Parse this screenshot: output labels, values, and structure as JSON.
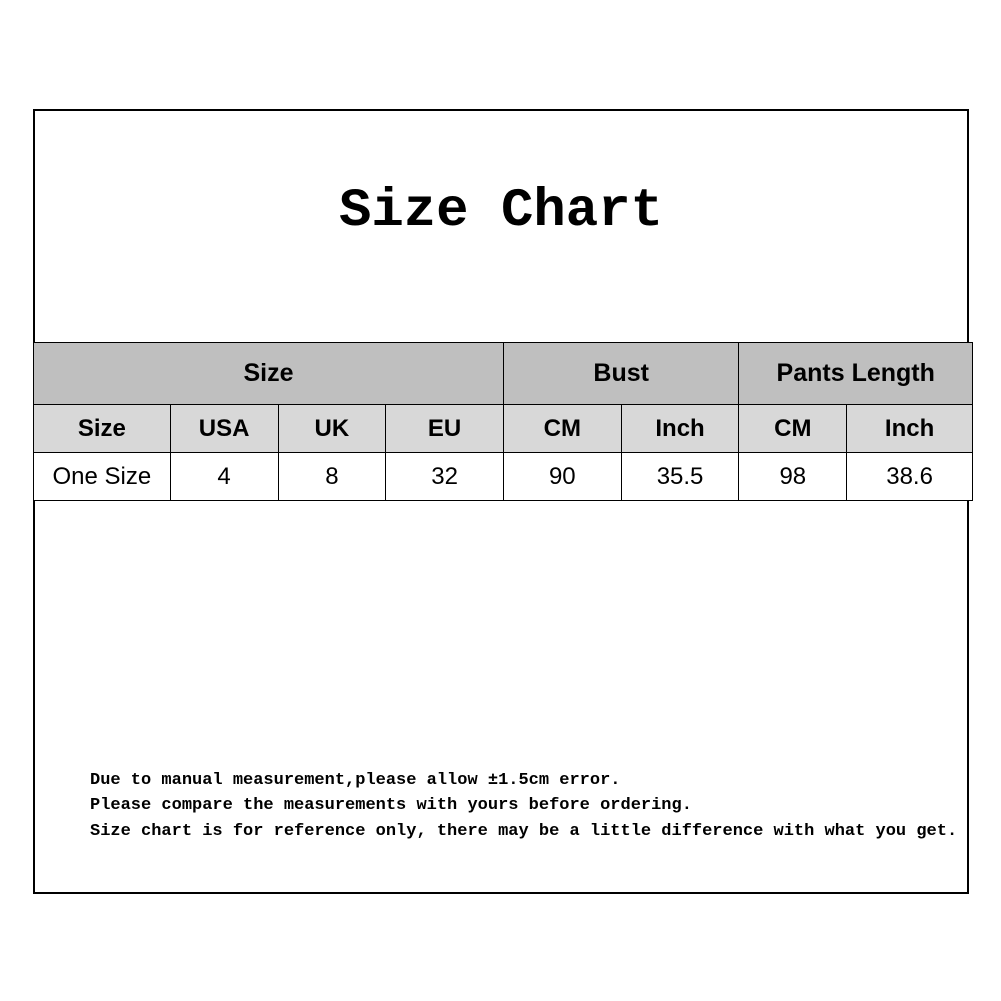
{
  "title": "Size Chart",
  "table": {
    "group_headers": {
      "size": "Size",
      "bust": "Bust",
      "pants_length": "Pants Length"
    },
    "sub_headers": {
      "size": "Size",
      "usa": "USA",
      "uk": "UK",
      "eu": "EU",
      "bust_cm": "CM",
      "bust_inch": "Inch",
      "pants_cm": "CM",
      "pants_inch": "Inch"
    },
    "rows": [
      {
        "size": "One Size",
        "usa": "4",
        "uk": "8",
        "eu": "32",
        "bust_cm": "90",
        "bust_inch": "35.5",
        "pants_cm": "98",
        "pants_inch": "38.6"
      }
    ]
  },
  "notes": {
    "line1": "Due to manual measurement,please allow ±1.5cm error.",
    "line2": "Please compare the measurements with yours before ordering.",
    "line3": "Size chart is for reference only, there may be a little difference with what you get."
  },
  "colors": {
    "frame_border": "#000000",
    "group_header_bg": "#bfbfbf",
    "sub_header_bg": "#d8d8d8",
    "data_row_bg": "#ffffff",
    "text": "#000000",
    "background": "#ffffff"
  }
}
